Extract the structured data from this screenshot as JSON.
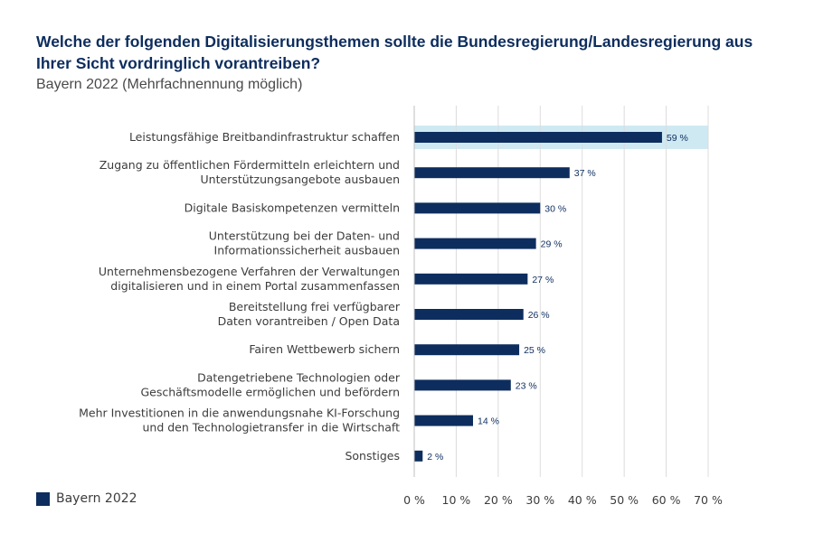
{
  "title": "Welche der folgenden Digitalisierungsthemen sollte die Bundesregierung/Landesregierung aus Ihrer Sicht vordringlich vorantreiben?",
  "subtitle": "Bayern 2022 (Mehrfachnennung möglich)",
  "colors": {
    "bar": "#0d2d5e",
    "highlight": "#cfe9f3",
    "grid": "#dcdcdc",
    "text": "#3c3c3c"
  },
  "chart_data": {
    "type": "bar",
    "orientation": "horizontal",
    "categories": [
      [
        "Leistungsfähige Breitbandinfrastruktur schaffen"
      ],
      [
        "Zugang zu öffentlichen Fördermitteln erleichtern und",
        "Unterstützungsangebote ausbauen"
      ],
      [
        "Digitale Basiskompetenzen vermitteln"
      ],
      [
        "Unterstützung bei der Daten- und",
        "Informationssicherheit ausbauen"
      ],
      [
        "Unternehmensbezogene Verfahren der Verwaltungen",
        "digitalisieren und in einem Portal zusammenfassen"
      ],
      [
        "Bereitstellung frei verfügbarer",
        "Daten vorantreiben / Open Data"
      ],
      [
        "Fairen Wettbewerb sichern"
      ],
      [
        "Datengetriebene Technologien oder",
        "Geschäftsmodelle ermöglichen und befördern"
      ],
      [
        "Mehr Investitionen in die anwendungsnahe KI-Forschung",
        "und den Technologietransfer in die Wirtschaft"
      ],
      [
        "Sonstiges"
      ]
    ],
    "series": [
      {
        "name": "Bayern 2022",
        "values": [
          59,
          37,
          30,
          29,
          27,
          26,
          25,
          23,
          14,
          2
        ]
      }
    ],
    "value_labels": [
      "59 %",
      "37 %",
      "30 %",
      "29 %",
      "27 %",
      "26 %",
      "25 %",
      "23 %",
      "14 %",
      "2 %"
    ],
    "highlighted_index": 0,
    "xlim": [
      0,
      70
    ],
    "xticks": [
      0,
      10,
      20,
      30,
      40,
      50,
      60,
      70
    ],
    "xtick_labels": [
      "0 %",
      "10 %",
      "20 %",
      "30 %",
      "40 %",
      "50 %",
      "60 %",
      "70 %"
    ],
    "grid": true,
    "legend": "bottom-left"
  }
}
